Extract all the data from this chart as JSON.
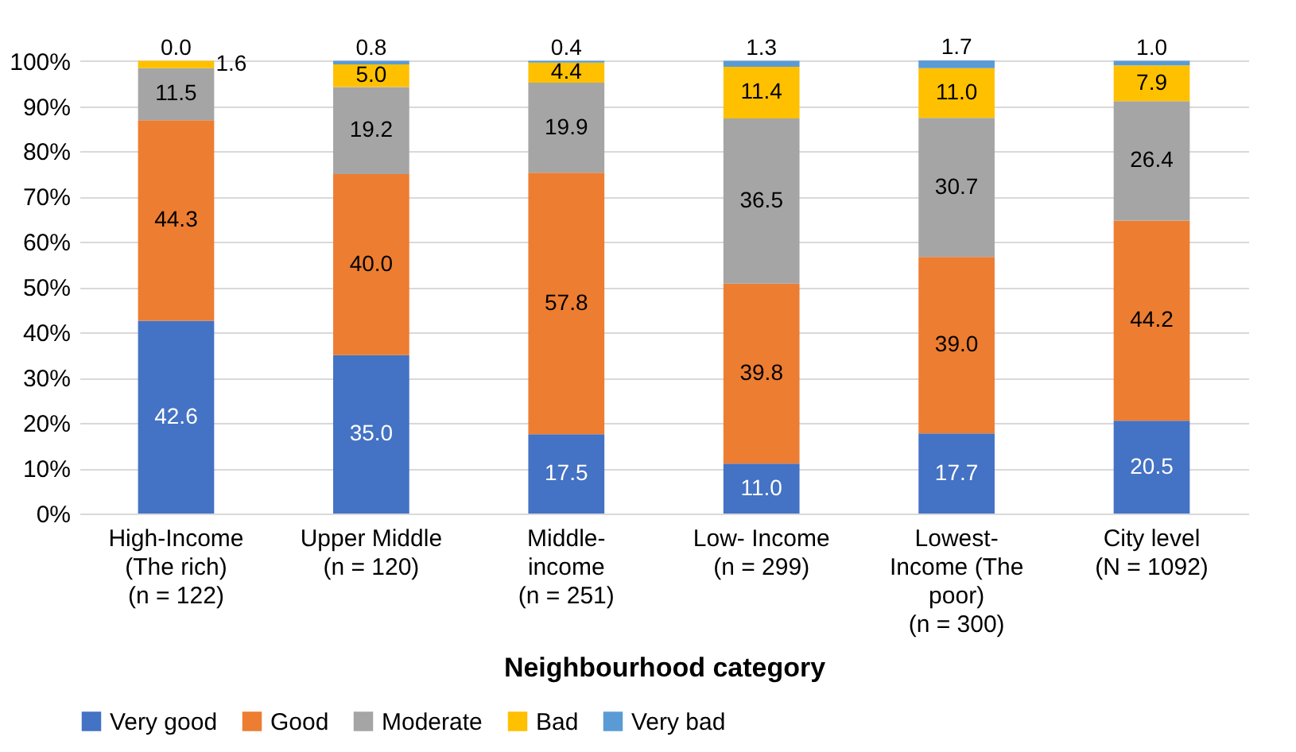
{
  "chart_data": {
    "type": "bar",
    "stacked": true,
    "xlabel": "Neighbourhood category",
    "categories": [
      "High-Income\n(The rich)\n(n = 122)",
      "Upper Middle\n(n = 120)",
      "Middle-\nincome\n(n = 251)",
      "Low- Income\n(n = 299)",
      "Lowest-\nIncome (The\npoor)\n(n = 300)",
      "City level\n(N = 1092)"
    ],
    "series": [
      {
        "name": "Very good",
        "color": "#4472c4",
        "values": [
          42.6,
          35.0,
          17.5,
          11.0,
          17.7,
          20.5
        ],
        "value_labels": [
          "42.6",
          "35.0",
          "17.5",
          "11.0",
          "17.7",
          "20.5"
        ]
      },
      {
        "name": "Good",
        "color": "#ed7d31",
        "values": [
          44.3,
          40.0,
          57.8,
          39.8,
          39.0,
          44.2
        ],
        "value_labels": [
          "44.3",
          "40.0",
          "57.8",
          "39.8",
          "39.0",
          "44.2"
        ]
      },
      {
        "name": "Moderate",
        "color": "#a5a5a5",
        "values": [
          11.5,
          19.2,
          19.9,
          36.5,
          30.7,
          26.4
        ],
        "value_labels": [
          "11.5",
          "19.2",
          "19.9",
          "36.5",
          "30.7",
          "26.4"
        ]
      },
      {
        "name": "Bad",
        "color": "#ffc000",
        "values": [
          1.6,
          5.0,
          4.4,
          11.4,
          11.0,
          7.9
        ],
        "value_labels": [
          "1.6",
          "5.0",
          "4.4",
          "11.4",
          "11.0",
          "7.9"
        ]
      },
      {
        "name": "Very bad",
        "color": "#5b9bd5",
        "values": [
          0.0,
          0.8,
          0.4,
          1.3,
          1.7,
          1.0
        ],
        "value_labels": [
          "0.0",
          "0.8",
          "0.4",
          "1.3",
          "1.7",
          "1.0"
        ]
      }
    ],
    "ylim": [
      0,
      100.1
    ],
    "yticks": [
      {
        "value": 0,
        "label": "0%"
      },
      {
        "value": 10,
        "label": "10%"
      },
      {
        "value": 20,
        "label": "20%"
      },
      {
        "value": 30,
        "label": "30%"
      },
      {
        "value": 40,
        "label": "40%"
      },
      {
        "value": 50,
        "label": "50%"
      },
      {
        "value": 60,
        "label": "60%"
      },
      {
        "value": 70,
        "label": "70%"
      },
      {
        "value": 80,
        "label": "80%"
      },
      {
        "value": 90,
        "label": "90%"
      },
      {
        "value": 100,
        "label": "100%"
      }
    ],
    "grid": "y",
    "legend": "bottom",
    "data_labels": true
  }
}
